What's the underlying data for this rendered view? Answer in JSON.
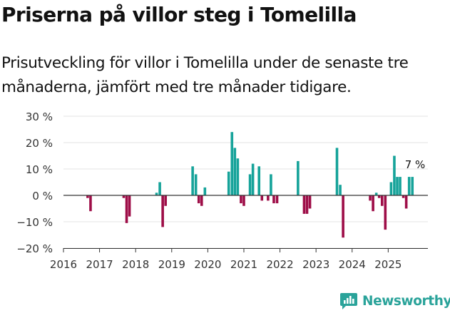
{
  "title": "Priserna på villor steg i Tomelilla",
  "subtitle": "Prisutveckling för villor i Tomelilla under de senaste tre månaderna, jämfört med tre månader tidigare.",
  "brand": {
    "name": "Newsworthy",
    "color": "#2aa39a"
  },
  "colors": {
    "positive": "#16a39a",
    "negative": "#9e0e48",
    "grid": "#e3e3e3",
    "zero_line": "#333333"
  },
  "chart_data": {
    "type": "bar",
    "title": "Priserna på villor steg i Tomelilla",
    "xlabel": "",
    "ylabel": "",
    "ylim": [
      -20,
      30
    ],
    "yticks": [
      -20,
      -10,
      0,
      10,
      20,
      30
    ],
    "ytick_labels": [
      "−20 %",
      "−10 %",
      "0 %",
      "10 %",
      "20 %",
      "30 %"
    ],
    "xlim": [
      2016,
      2026.1
    ],
    "xticks": [
      2016,
      2017,
      2018,
      2019,
      2020,
      2021,
      2022,
      2023,
      2024,
      2025
    ],
    "xtick_labels": [
      "2016",
      "2017",
      "2018",
      "2019",
      "2020",
      "2021",
      "2022",
      "2023",
      "2024",
      "2025"
    ],
    "grid": "horizontal",
    "annotation": {
      "text": "7 %",
      "x": 2025.7,
      "y": 7
    },
    "points": [
      {
        "x": 2016.67,
        "y": -1
      },
      {
        "x": 2016.75,
        "y": -6
      },
      {
        "x": 2017.67,
        "y": -1
      },
      {
        "x": 2017.75,
        "y": -10.5
      },
      {
        "x": 2017.83,
        "y": -8
      },
      {
        "x": 2018.58,
        "y": 1
      },
      {
        "x": 2018.67,
        "y": 5
      },
      {
        "x": 2018.75,
        "y": -12
      },
      {
        "x": 2018.83,
        "y": -4
      },
      {
        "x": 2019.58,
        "y": 11
      },
      {
        "x": 2019.67,
        "y": 8
      },
      {
        "x": 2019.75,
        "y": -3
      },
      {
        "x": 2019.83,
        "y": -4
      },
      {
        "x": 2019.92,
        "y": 3
      },
      {
        "x": 2020.58,
        "y": 9
      },
      {
        "x": 2020.67,
        "y": 24
      },
      {
        "x": 2020.75,
        "y": 18
      },
      {
        "x": 2020.83,
        "y": 14
      },
      {
        "x": 2020.92,
        "y": -3
      },
      {
        "x": 2021.0,
        "y": -4
      },
      {
        "x": 2021.17,
        "y": 8
      },
      {
        "x": 2021.25,
        "y": 12
      },
      {
        "x": 2021.42,
        "y": 11
      },
      {
        "x": 2021.5,
        "y": -2
      },
      {
        "x": 2021.67,
        "y": -2
      },
      {
        "x": 2021.75,
        "y": 8
      },
      {
        "x": 2021.83,
        "y": -3
      },
      {
        "x": 2021.92,
        "y": -3
      },
      {
        "x": 2022.5,
        "y": 13
      },
      {
        "x": 2022.67,
        "y": -7
      },
      {
        "x": 2022.75,
        "y": -7
      },
      {
        "x": 2022.83,
        "y": -5
      },
      {
        "x": 2023.58,
        "y": 18
      },
      {
        "x": 2023.67,
        "y": 4
      },
      {
        "x": 2023.75,
        "y": -16
      },
      {
        "x": 2024.5,
        "y": -2
      },
      {
        "x": 2024.58,
        "y": -6
      },
      {
        "x": 2024.67,
        "y": 1
      },
      {
        "x": 2024.75,
        "y": -1
      },
      {
        "x": 2024.83,
        "y": -4
      },
      {
        "x": 2024.92,
        "y": -13
      },
      {
        "x": 2025.08,
        "y": 5
      },
      {
        "x": 2025.17,
        "y": 15
      },
      {
        "x": 2025.25,
        "y": 7
      },
      {
        "x": 2025.33,
        "y": 7
      },
      {
        "x": 2025.42,
        "y": -1
      },
      {
        "x": 2025.5,
        "y": -5
      },
      {
        "x": 2025.58,
        "y": 7
      },
      {
        "x": 2025.67,
        "y": 7
      }
    ]
  }
}
